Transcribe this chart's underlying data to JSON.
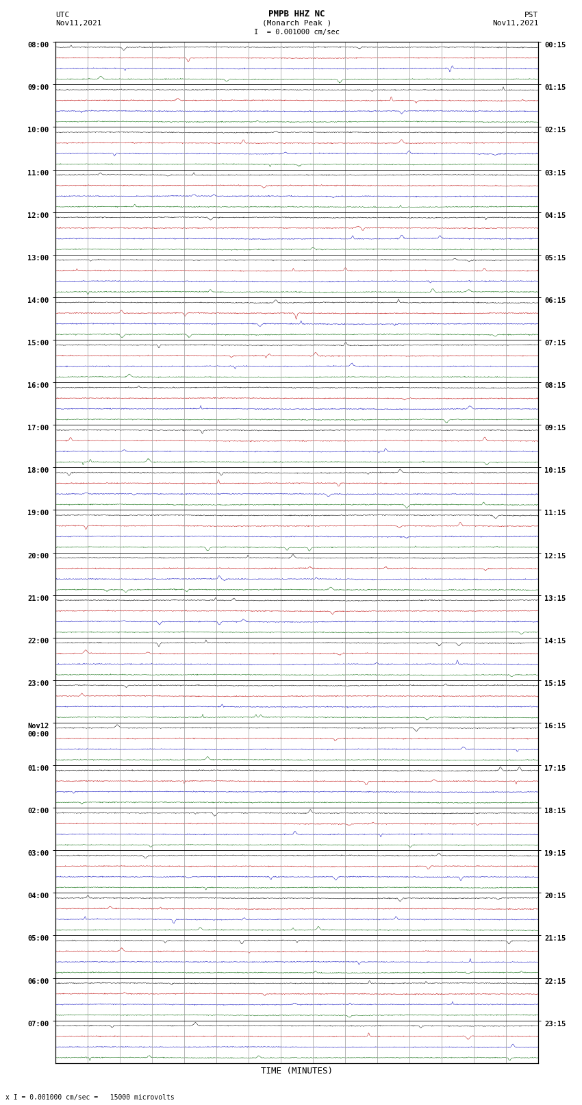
{
  "title_line1": "PMPB HHZ NC",
  "title_line2": "(Monarch Peak )",
  "scale_text": "= 0.001000 cm/sec",
  "utc_label": "UTC",
  "utc_date": "Nov11,2021",
  "pst_label": "PST",
  "pst_date": "Nov11,2021",
  "xlabel": "TIME (MINUTES)",
  "footnote": "x I = 0.001000 cm/sec =   15000 microvolts",
  "xmin": 0,
  "xmax": 15,
  "num_hours": 24,
  "traces_per_hour": 4,
  "trace_colors": [
    "#000000",
    "#bb0000",
    "#0000bb",
    "#006600"
  ],
  "utc_hour_labels": [
    "08:00",
    "09:00",
    "10:00",
    "11:00",
    "12:00",
    "13:00",
    "14:00",
    "15:00",
    "16:00",
    "17:00",
    "18:00",
    "19:00",
    "20:00",
    "21:00",
    "22:00",
    "23:00",
    "00:00",
    "01:00",
    "02:00",
    "03:00",
    "04:00",
    "05:00",
    "06:00",
    "07:00"
  ],
  "utc_hour_label_extra": [
    "",
    "",
    "",
    "",
    "",
    "",
    "",
    "",
    "",
    "",
    "",
    "",
    "",
    "",
    "",
    "",
    "Nov12",
    "",
    "",
    "",
    "",
    "",
    "",
    ""
  ],
  "pst_hour_labels": [
    "00:15",
    "01:15",
    "02:15",
    "03:15",
    "04:15",
    "05:15",
    "06:15",
    "07:15",
    "08:15",
    "09:15",
    "10:15",
    "11:15",
    "12:15",
    "13:15",
    "14:15",
    "15:15",
    "16:15",
    "17:15",
    "18:15",
    "19:15",
    "20:15",
    "21:15",
    "22:15",
    "23:15"
  ],
  "background_color": "#ffffff",
  "grid_color": "#999999",
  "border_color": "#000000",
  "noise_amplitude": 0.055,
  "noise_seed": 42
}
